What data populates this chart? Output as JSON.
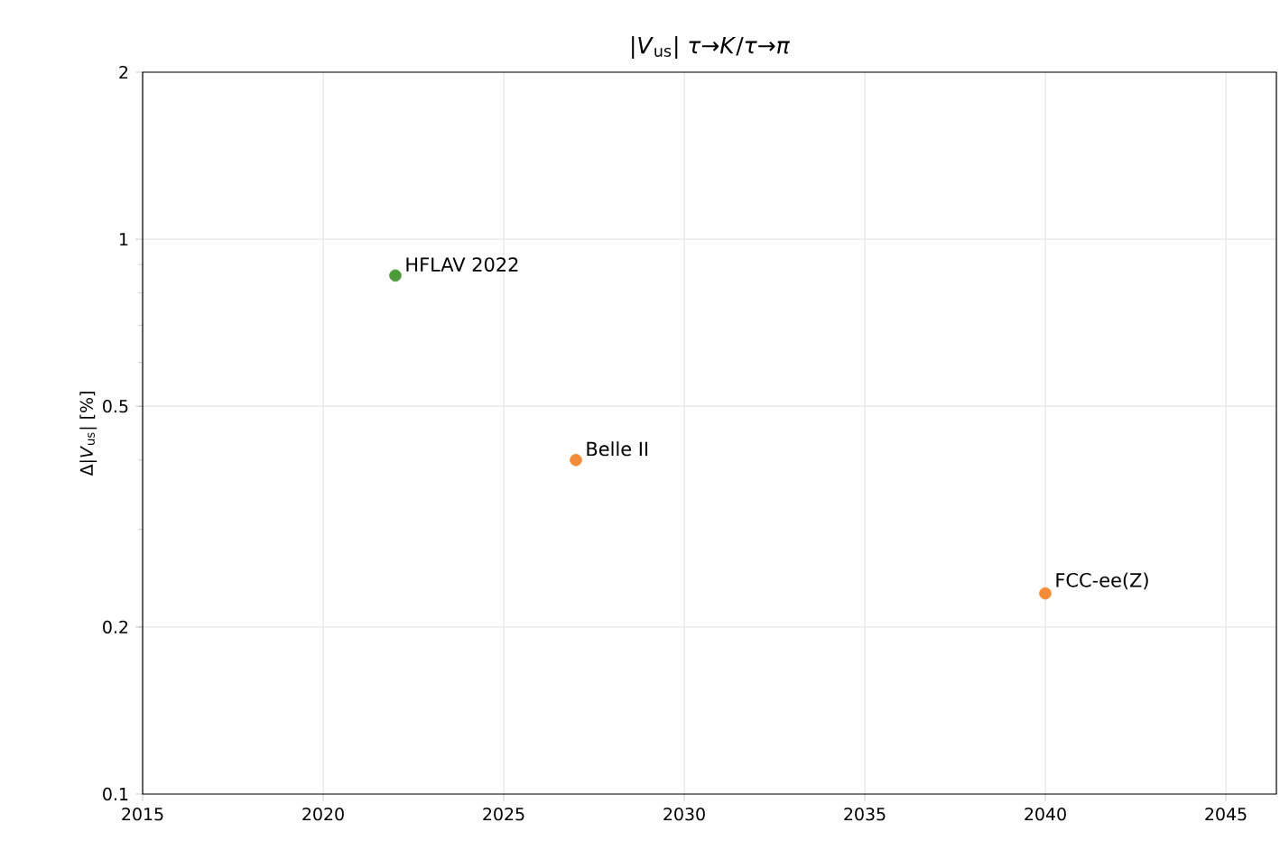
{
  "chart_data": {
    "type": "scatter",
    "title": "|*V*$_{us}$| *τ*→*K*/*τ*→*π*",
    "ylabel": "Δ|*V*$_{us}$| [%]",
    "x": [
      2022,
      2027,
      2040
    ],
    "values": [
      0.86,
      0.4,
      0.23
    ],
    "colors": [
      "#4c9a3a",
      "#f28c38",
      "#f28c38"
    ],
    "log": "y",
    "grid": true,
    "xlim": [
      2015,
      2046.4
    ],
    "xticks": [
      2015,
      2020,
      2025,
      2030,
      2035,
      2040,
      2045
    ],
    "ylim": [
      0.1,
      2
    ],
    "yticks": [
      0.1,
      0.2,
      0.5,
      1,
      2
    ],
    "annotations": [
      {
        "text": "HFLAV 2022",
        "x": 2022,
        "y": 0.86
      },
      {
        "text": "Belle II",
        "x": 2027,
        "y": 0.4
      },
      {
        "text": "FCC-ee(Z)",
        "x": 2040,
        "y": 0.23
      }
    ]
  }
}
